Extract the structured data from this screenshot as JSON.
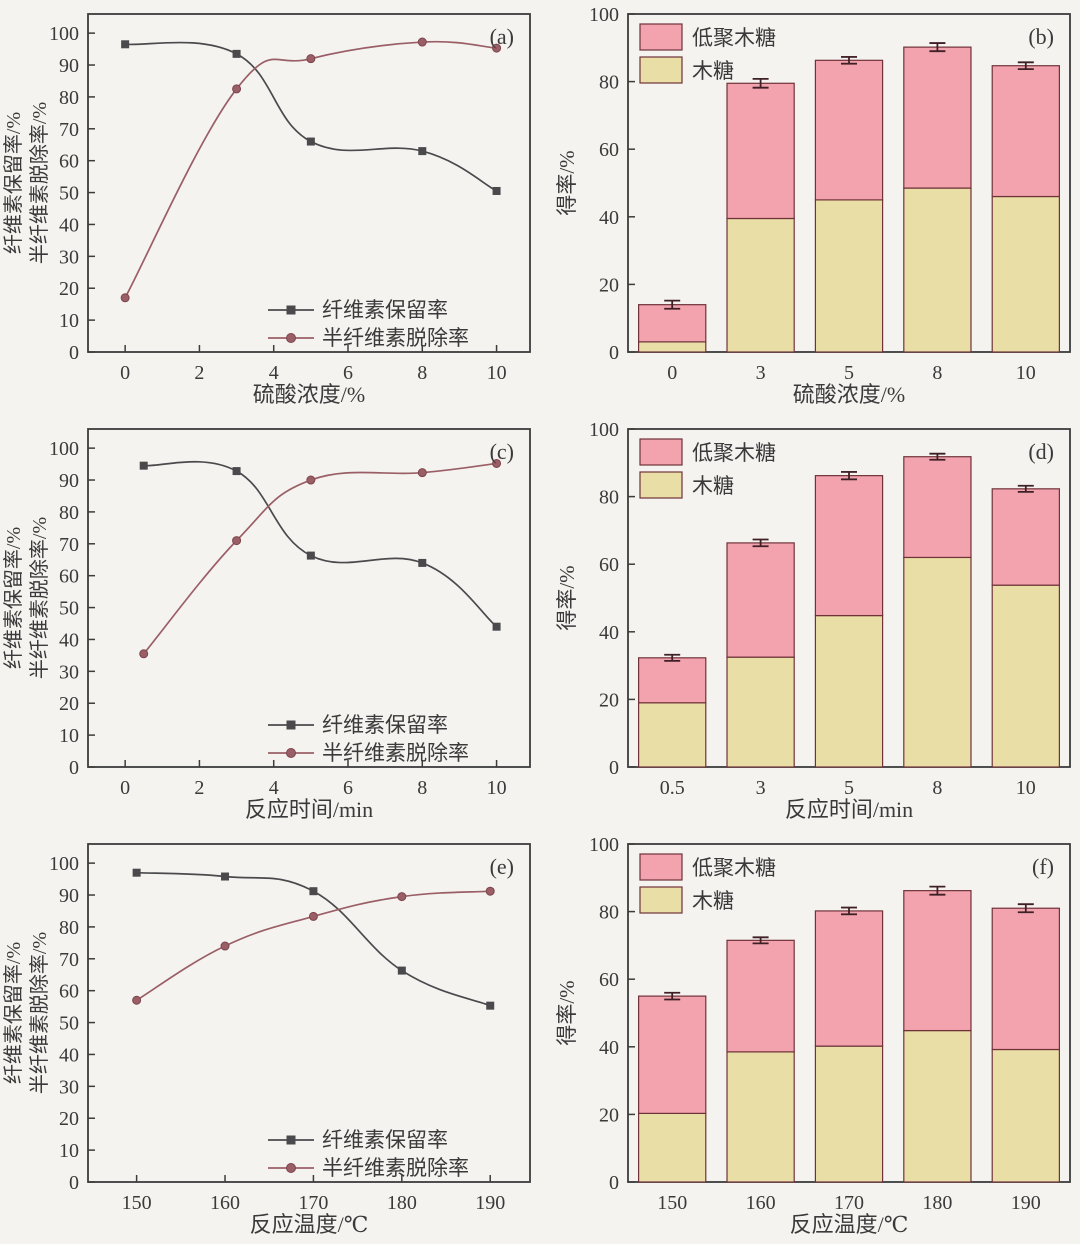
{
  "figure": {
    "background": "#f5f3f0",
    "description_labels": {
      "cellulose_retention": "纤维素保留率",
      "hemicellulose_removal": "半纤维素脱除率",
      "xylooligosaccharide": "低聚木糖",
      "xylose": "木糖",
      "yield_axis": "得率/%"
    }
  },
  "style": {
    "axis_color": "#3c3c3c",
    "text_color": "#3a3a3a",
    "cellulose_color": "#4a4a4d",
    "hemicellulose_color": "#9a5f66",
    "xos_fill": "#f2a3ae",
    "xylose_fill": "#e9dfa6",
    "bar_edge": "#6f3239",
    "error_color": "#3f2026"
  },
  "chart_data": [
    {
      "id": "a",
      "type": "line",
      "panel_label": "(a)",
      "xlabel": "硫酸浓度/%",
      "ylabel_lines": [
        "纤维素保留率/%",
        "半纤维素脱除率/%"
      ],
      "xlim": [
        -1,
        10.9
      ],
      "ylim": [
        0,
        106
      ],
      "xticks": [
        0,
        2,
        4,
        6,
        8,
        10
      ],
      "yticks": [
        0,
        10,
        20,
        30,
        40,
        50,
        60,
        70,
        80,
        90,
        100
      ],
      "grid": false,
      "legend_position": "bottom-right",
      "series": [
        {
          "name": "纤维素保留率",
          "marker": "square",
          "color": "#4a4a4d",
          "x": [
            0,
            3,
            5,
            8,
            10
          ],
          "y": [
            96.5,
            93.5,
            66.0,
            63.0,
            50.5
          ]
        },
        {
          "name": "半纤维素脱除率",
          "marker": "circle",
          "color": "#9a5f66",
          "x": [
            0,
            3,
            5,
            8,
            10
          ],
          "y": [
            17.0,
            82.5,
            92.0,
            97.2,
            95.3
          ]
        }
      ]
    },
    {
      "id": "b",
      "type": "stacked-bar",
      "panel_label": "(b)",
      "xlabel": "硫酸浓度/%",
      "ylabel": "得率/%",
      "categories": [
        "0",
        "3",
        "5",
        "8",
        "10"
      ],
      "ylim": [
        0,
        100
      ],
      "yticks": [
        0,
        20,
        40,
        60,
        80,
        100
      ],
      "grid": false,
      "legend_position": "top-left",
      "legend_items": [
        "低聚木糖",
        "木糖"
      ],
      "series": [
        {
          "name": "木糖",
          "color": "#e9dfa6",
          "values": [
            3.0,
            39.5,
            45.0,
            48.5,
            46.0
          ]
        },
        {
          "name": "低聚木糖",
          "color": "#f2a3ae",
          "values": [
            11.0,
            40.0,
            41.3,
            41.7,
            38.7
          ]
        }
      ],
      "totals": [
        14.0,
        79.5,
        86.3,
        90.2,
        84.7
      ],
      "errors": [
        1.2,
        1.3,
        1.0,
        1.2,
        1.0
      ]
    },
    {
      "id": "c",
      "type": "line",
      "panel_label": "(c)",
      "xlabel": "反应时间/min",
      "ylabel_lines": [
        "纤维素保留率/%",
        "半纤维素脱除率/%"
      ],
      "xlim": [
        -1,
        10.9
      ],
      "ylim": [
        0,
        106
      ],
      "xticks": [
        0,
        2,
        4,
        6,
        8,
        10
      ],
      "yticks": [
        0,
        10,
        20,
        30,
        40,
        50,
        60,
        70,
        80,
        90,
        100
      ],
      "grid": false,
      "legend_position": "bottom-right",
      "series": [
        {
          "name": "纤维素保留率",
          "marker": "square",
          "color": "#4a4a4d",
          "x": [
            0.5,
            3,
            5,
            8,
            10
          ],
          "y": [
            94.5,
            92.8,
            66.3,
            64.0,
            44.0
          ]
        },
        {
          "name": "半纤维素脱除率",
          "marker": "circle",
          "color": "#9a5f66",
          "x": [
            0.5,
            3,
            5,
            8,
            10
          ],
          "y": [
            35.5,
            71.0,
            90.0,
            92.3,
            95.2
          ]
        }
      ]
    },
    {
      "id": "d",
      "type": "stacked-bar",
      "panel_label": "(d)",
      "xlabel": "反应时间/min",
      "ylabel": "得率/%",
      "categories": [
        "0.5",
        "3",
        "5",
        "8",
        "10"
      ],
      "ylim": [
        0,
        100
      ],
      "yticks": [
        0,
        20,
        40,
        60,
        80,
        100
      ],
      "grid": false,
      "legend_position": "top-left",
      "legend_items": [
        "低聚木糖",
        "木糖"
      ],
      "series": [
        {
          "name": "木糖",
          "color": "#e9dfa6",
          "values": [
            19.0,
            32.5,
            44.8,
            62.0,
            53.8
          ]
        },
        {
          "name": "低聚木糖",
          "color": "#f2a3ae",
          "values": [
            13.3,
            33.8,
            41.4,
            29.8,
            28.5
          ]
        }
      ],
      "totals": [
        32.3,
        66.3,
        86.2,
        91.8,
        82.3
      ],
      "errors": [
        0.9,
        1.0,
        1.1,
        0.9,
        0.9
      ]
    },
    {
      "id": "e",
      "type": "line",
      "panel_label": "(e)",
      "xlabel": "反应温度/℃",
      "ylabel_lines": [
        "纤维素保留率/%",
        "半纤维素脱除率/%"
      ],
      "xlim": [
        144.5,
        194.5
      ],
      "ylim": [
        0,
        106
      ],
      "xticks": [
        150,
        160,
        170,
        180,
        190
      ],
      "yticks": [
        0,
        10,
        20,
        30,
        40,
        50,
        60,
        70,
        80,
        90,
        100
      ],
      "grid": false,
      "legend_position": "bottom-right",
      "series": [
        {
          "name": "纤维素保留率",
          "marker": "square",
          "color": "#4a4a4d",
          "x": [
            150,
            160,
            170,
            180,
            190
          ],
          "y": [
            97.0,
            95.8,
            91.2,
            66.3,
            55.3
          ]
        },
        {
          "name": "半纤维素脱除率",
          "marker": "circle",
          "color": "#9a5f66",
          "x": [
            150,
            160,
            170,
            180,
            190
          ],
          "y": [
            57.0,
            74.0,
            83.3,
            89.5,
            91.2
          ]
        }
      ]
    },
    {
      "id": "f",
      "type": "stacked-bar",
      "panel_label": "(f)",
      "xlabel": "反应温度/℃",
      "ylabel": "得率/%",
      "categories": [
        "150",
        "160",
        "170",
        "180",
        "190"
      ],
      "ylim": [
        0,
        100
      ],
      "yticks": [
        0,
        20,
        40,
        60,
        80,
        100
      ],
      "grid": false,
      "legend_position": "top-left",
      "legend_items": [
        "低聚木糖",
        "木糖"
      ],
      "series": [
        {
          "name": "木糖",
          "color": "#e9dfa6",
          "values": [
            20.3,
            38.5,
            40.2,
            44.8,
            39.2
          ]
        },
        {
          "name": "低聚木糖",
          "color": "#f2a3ae",
          "values": [
            34.7,
            33.0,
            40.0,
            41.4,
            41.8
          ]
        }
      ],
      "totals": [
        55.0,
        71.5,
        80.2,
        86.2,
        81.0
      ],
      "errors": [
        1.0,
        0.9,
        1.0,
        1.2,
        1.2
      ]
    }
  ]
}
